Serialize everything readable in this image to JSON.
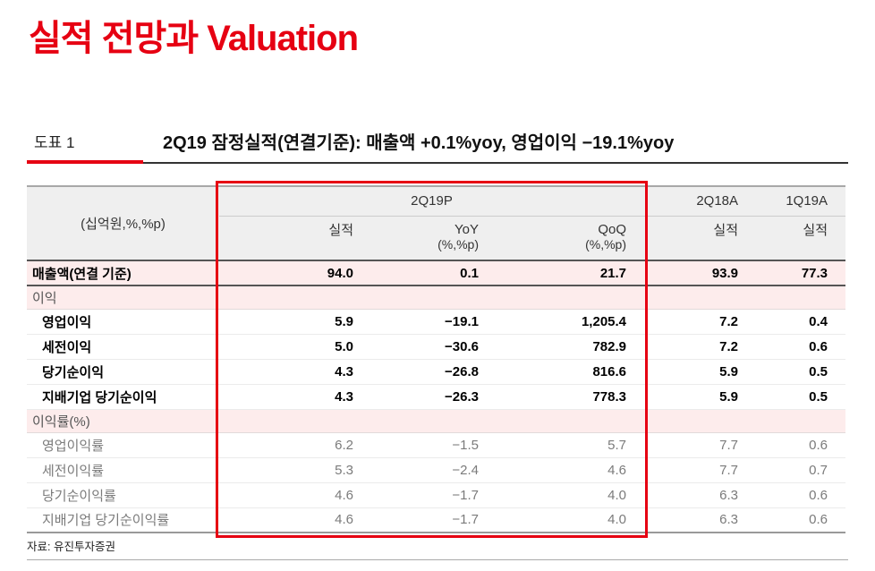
{
  "page": {
    "title": "실적 전망과 Valuation",
    "figure_label": "도표 1",
    "figure_caption": "2Q19 잠정실적(연결기준): 매출액 +0.1%yoy, 영업이익 −19.1%yoy",
    "source": "자료: 유진투자증권"
  },
  "colors": {
    "accent_red": "#e60012",
    "highlight_pink": "#fdecec",
    "header_gray": "#efefef"
  },
  "table": {
    "unit_label": "(십억원,%,%p)",
    "col_groups": [
      {
        "label": "2Q19P",
        "span": 3
      },
      {
        "label": "2Q18A",
        "span": 1
      },
      {
        "label": "1Q19A",
        "span": 1
      }
    ],
    "sub_headers": [
      {
        "main": "실적",
        "sub": ""
      },
      {
        "main": "YoY",
        "sub": "(%,%p)"
      },
      {
        "main": "QoQ",
        "sub": "(%,%p)"
      },
      {
        "main": "실적",
        "sub": ""
      },
      {
        "main": "실적",
        "sub": ""
      }
    ],
    "rows": [
      {
        "label": "매출액(연결 기준)",
        "values": [
          "94.0",
          "0.1",
          "21.7",
          "93.9",
          "77.3"
        ],
        "style": "highlight",
        "indent": false,
        "section": false
      },
      {
        "label": "이익",
        "values": [],
        "style": "section",
        "indent": false,
        "section": true
      },
      {
        "label": "영업이익",
        "values": [
          "5.9",
          "−19.1",
          "1,205.4",
          "7.2",
          "0.4"
        ],
        "style": "bold",
        "indent": true,
        "section": false
      },
      {
        "label": "세전이익",
        "values": [
          "5.0",
          "−30.6",
          "782.9",
          "7.2",
          "0.6"
        ],
        "style": "bold",
        "indent": true,
        "section": false
      },
      {
        "label": "당기순이익",
        "values": [
          "4.3",
          "−26.8",
          "816.6",
          "5.9",
          "0.5"
        ],
        "style": "bold",
        "indent": true,
        "section": false
      },
      {
        "label": "지배기업 당기순이익",
        "values": [
          "4.3",
          "−26.3",
          "778.3",
          "5.9",
          "0.5"
        ],
        "style": "bold",
        "indent": true,
        "section": false
      },
      {
        "label": "이익률(%)",
        "values": [],
        "style": "section",
        "indent": false,
        "section": true
      },
      {
        "label": "영업이익률",
        "values": [
          "6.2",
          "−1.5",
          "5.7",
          "7.7",
          "0.6"
        ],
        "style": "muted",
        "indent": true,
        "section": false
      },
      {
        "label": "세전이익률",
        "values": [
          "5.3",
          "−2.4",
          "4.6",
          "7.7",
          "0.7"
        ],
        "style": "muted",
        "indent": true,
        "section": false
      },
      {
        "label": "당기순이익률",
        "values": [
          "4.6",
          "−1.7",
          "4.0",
          "6.3",
          "0.6"
        ],
        "style": "muted",
        "indent": true,
        "section": false
      },
      {
        "label": "지배기업 당기순이익률",
        "values": [
          "4.6",
          "−1.7",
          "4.0",
          "6.3",
          "0.6"
        ],
        "style": "muted",
        "indent": true,
        "section": false
      }
    ]
  },
  "highlight_box": {
    "covers_columns": [
      "실적",
      "YoY",
      "QoQ"
    ],
    "group": "2Q19P"
  }
}
